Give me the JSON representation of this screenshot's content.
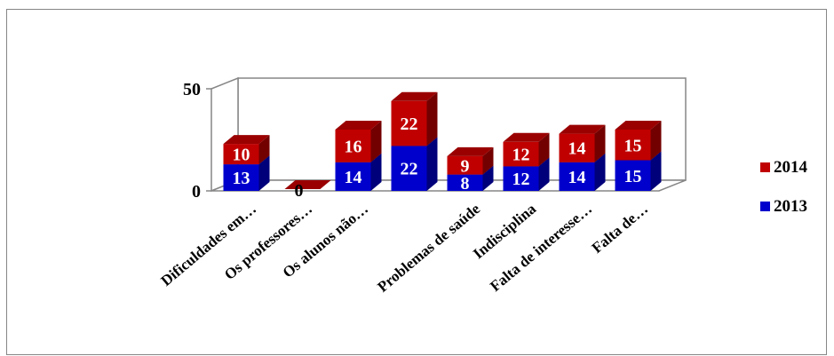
{
  "chart_data": {
    "type": "bar",
    "stacked": true,
    "three_d": true,
    "categories": [
      "Dificuldades em…",
      "Os professores…",
      "Os alunos não…",
      "",
      "Problemas de saúde",
      "Indisciplina",
      "Falta de interesse…",
      "Falta de…"
    ],
    "series": [
      {
        "name": "2013",
        "color": "#0000CC",
        "values": [
          13,
          0,
          14,
          22,
          8,
          12,
          14,
          15
        ]
      },
      {
        "name": "2014",
        "color": "#C00000",
        "values": [
          10,
          0,
          16,
          22,
          9,
          12,
          14,
          15
        ]
      }
    ],
    "data_labels": {
      "2013": [
        "13",
        "",
        "14",
        "22",
        "8",
        "12",
        "14",
        "15"
      ],
      "2014": [
        "10",
        "0",
        "16",
        "22",
        "9",
        "12",
        "14",
        "15"
      ]
    },
    "yticks": [
      "0",
      "50"
    ],
    "ylim": [
      0,
      50
    ],
    "legend_position": "right",
    "grid": true
  }
}
